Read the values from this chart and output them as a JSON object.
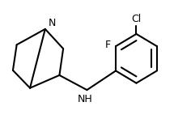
{
  "bg_color": "#ffffff",
  "line_color": "#000000",
  "line_width": 1.5,
  "font_size": 9,
  "label_N": "N",
  "label_F": "F",
  "label_Cl": "Cl",
  "label_NH": "NH",
  "fig_width": 2.36,
  "fig_height": 1.47,
  "dpi": 100
}
